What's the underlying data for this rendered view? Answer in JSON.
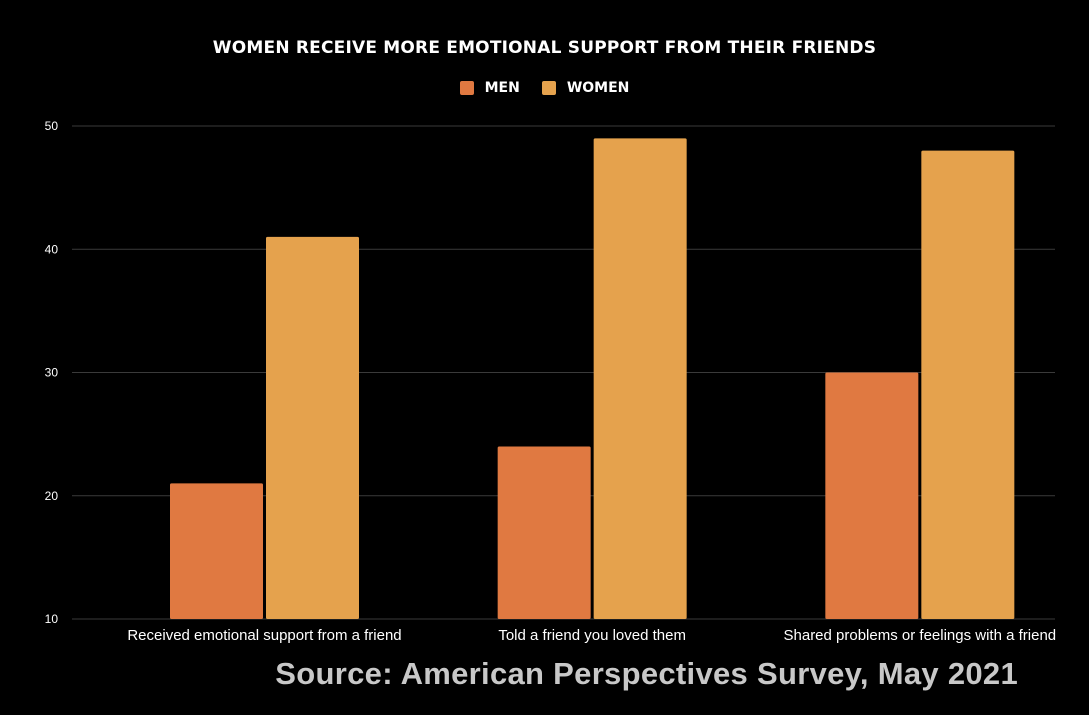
{
  "chart_data": {
    "type": "bar",
    "title": "WOMEN RECEIVE MORE EMOTIONAL SUPPORT FROM THEIR FRIENDS",
    "xlabel": "",
    "ylabel": "",
    "categories": [
      "Received emotional support from a friend",
      "Told a friend you loved them",
      "Shared problems or feelings with a friend"
    ],
    "series": [
      {
        "name": "MEN",
        "values": [
          21,
          24,
          30
        ],
        "color": "#e07941"
      },
      {
        "name": "WOMEN",
        "values": [
          41,
          49,
          48
        ],
        "color": "#e5a24d"
      }
    ],
    "ylim": [
      10,
      50
    ],
    "yticks": [
      "10",
      "20",
      "30",
      "40",
      "50"
    ],
    "grid": true,
    "legend_position": "top-center"
  },
  "source": "Source: American Perspectives Survey, May 2021",
  "colors": {
    "background": "#000000",
    "gridline": "#3a3a3a",
    "text": "#ffffff",
    "source_text": "#c8c8c8"
  }
}
